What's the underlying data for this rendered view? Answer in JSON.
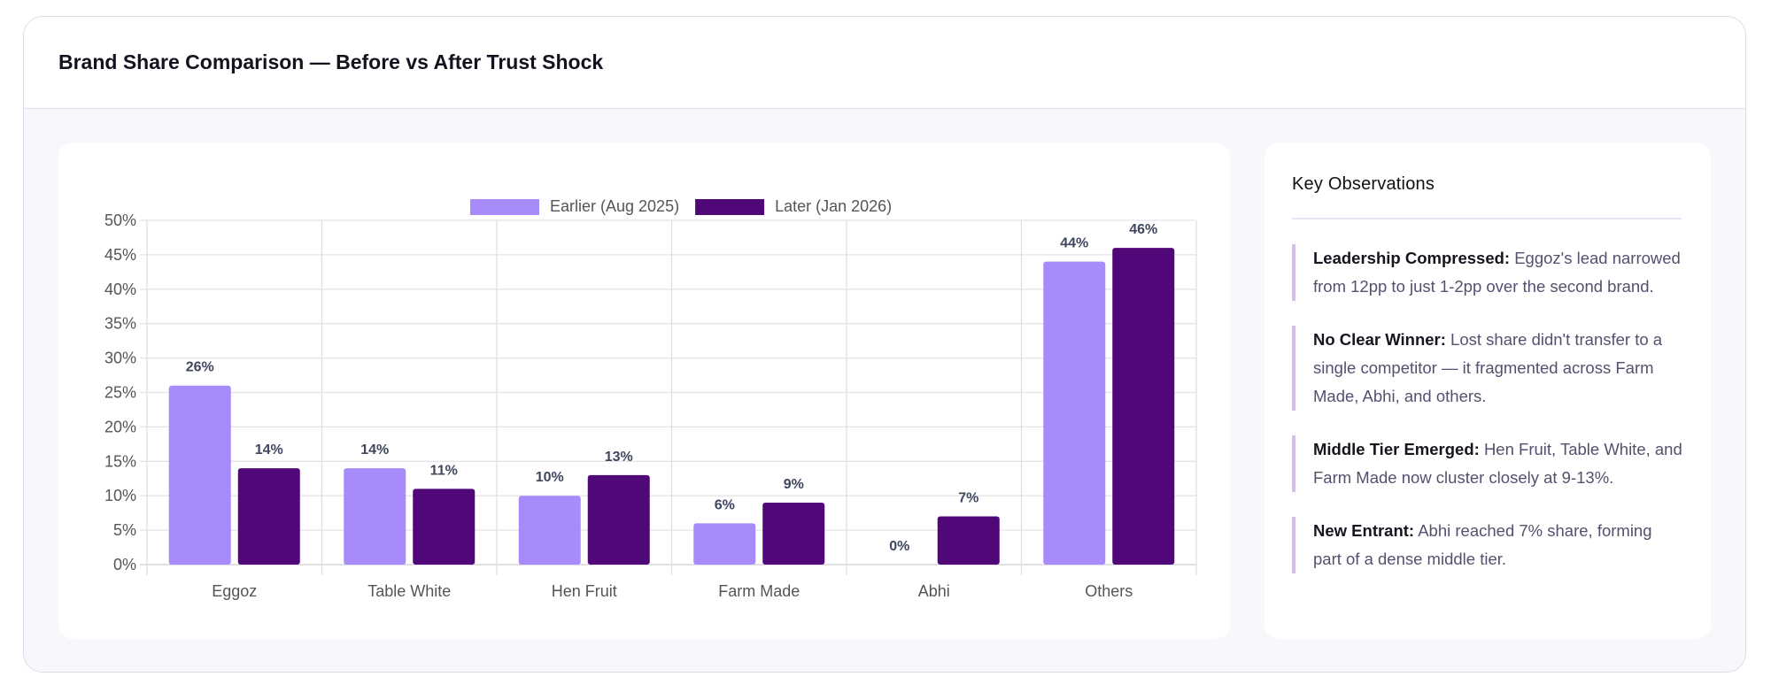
{
  "header": {
    "title": "Brand Share Comparison — Before vs After Trust Shock"
  },
  "chart_data": {
    "type": "bar",
    "title": "",
    "categories": [
      "Eggoz",
      "Table White",
      "Hen Fruit",
      "Farm Made",
      "Abhi",
      "Others"
    ],
    "series": [
      {
        "name": "Earlier (Aug 2025)",
        "color": "#a78bfa",
        "values": [
          26,
          14,
          10,
          6,
          0,
          44
        ]
      },
      {
        "name": "Later (Jan 2026)",
        "color": "#500778",
        "values": [
          14,
          11,
          13,
          9,
          7,
          46
        ]
      }
    ],
    "ylim": [
      0,
      50
    ],
    "yticks": [
      "0%",
      "5%",
      "10%",
      "15%",
      "20%",
      "25%",
      "30%",
      "35%",
      "40%",
      "45%",
      "50%"
    ],
    "xlabel": "",
    "ylabel": "",
    "grid": true,
    "legend": "top-center",
    "data_labels": true
  },
  "observations": {
    "title": "Key Observations",
    "items": [
      {
        "label": "Leadership Compressed:",
        "text": "Eggoz's lead narrowed from 12pp to just 1-2pp over the second brand."
      },
      {
        "label": "No Clear Winner:",
        "text": "Lost share didn't transfer to a single competitor — it fragmented across Farm Made, Abhi, and others."
      },
      {
        "label": "Middle Tier Emerged:",
        "text": "Hen Fruit, Table White, and Farm Made now cluster closely at 9-13%."
      },
      {
        "label": "New Entrant:",
        "text": "Abhi reached 7% share, forming part of a dense middle tier."
      }
    ]
  }
}
